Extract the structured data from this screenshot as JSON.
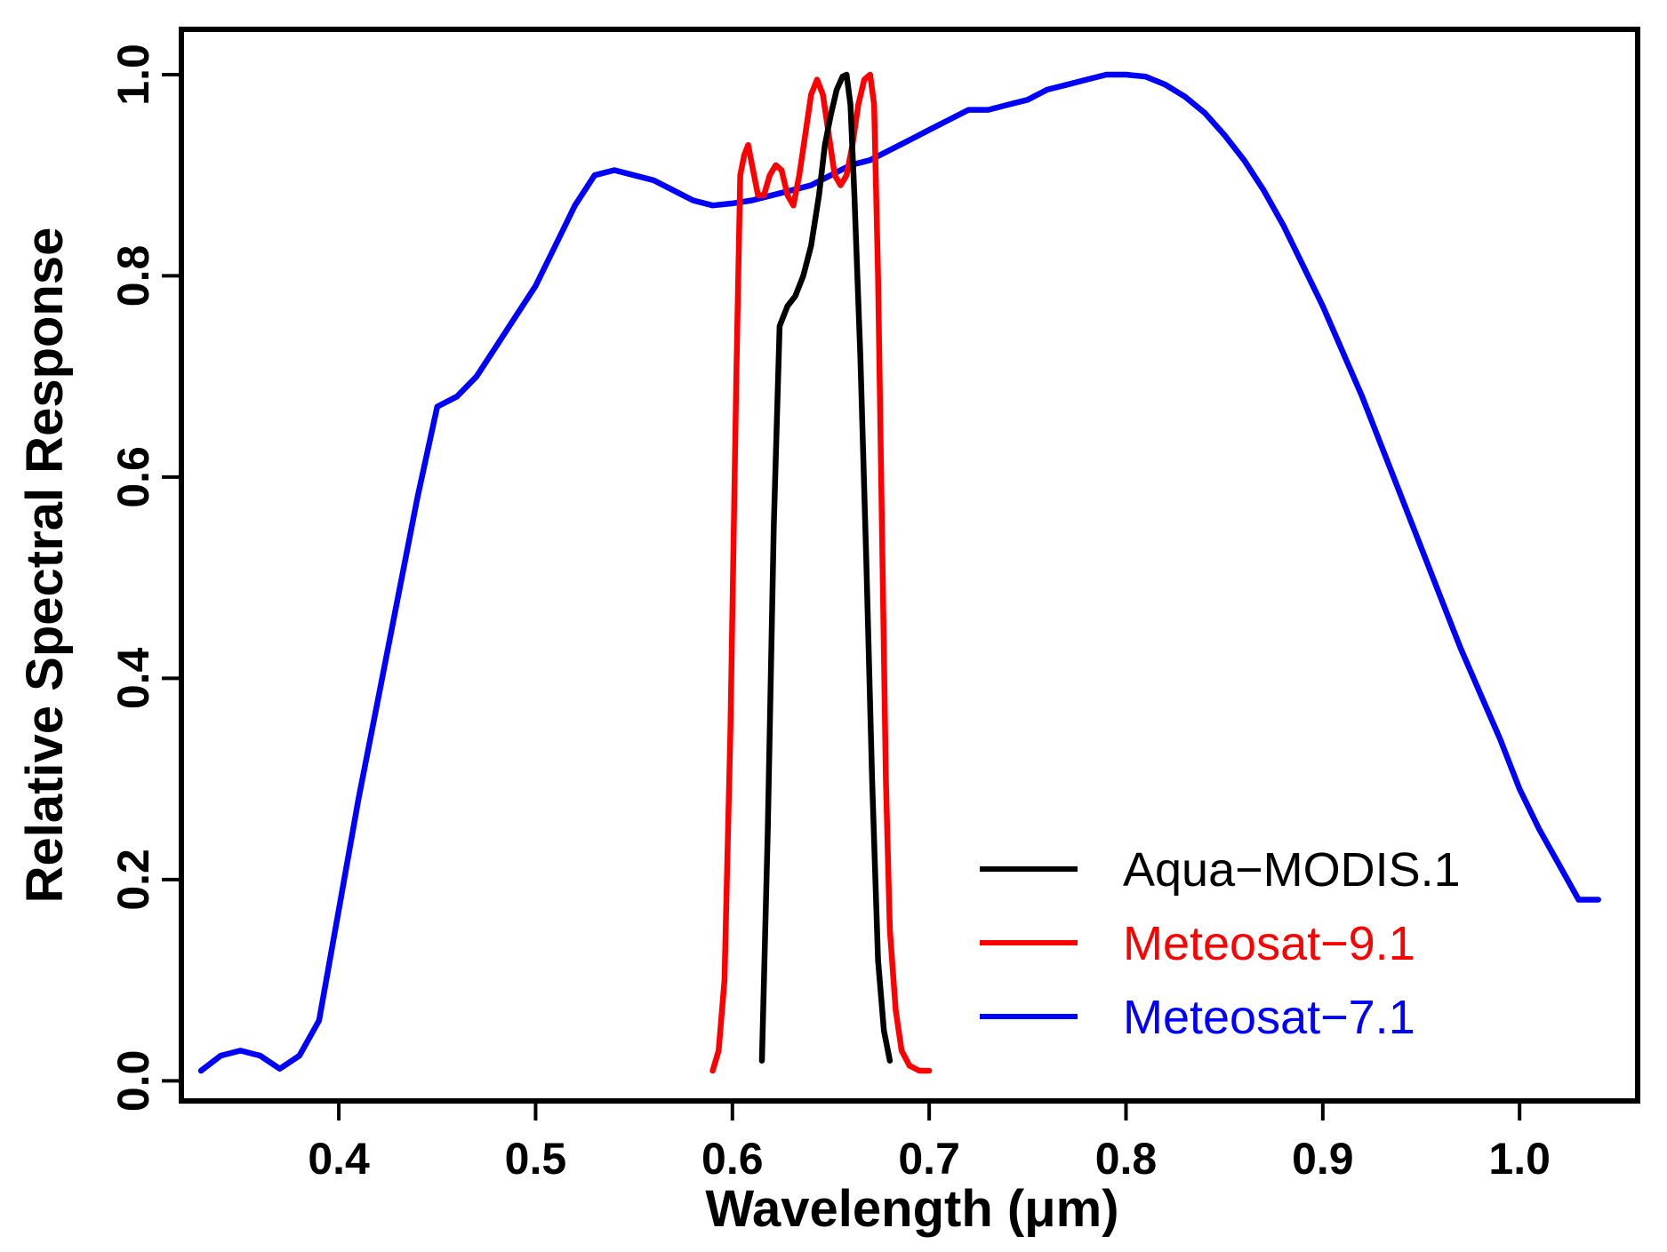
{
  "chart_data": {
    "type": "line",
    "title": "",
    "xlabel": "Wavelength (μm)",
    "ylabel": "Relative Spectral Response",
    "xlim": [
      0.32,
      1.06
    ],
    "ylim": [
      -0.02,
      1.045
    ],
    "xticks": [
      0.4,
      0.5,
      0.6,
      0.7,
      0.8,
      0.9,
      1.0
    ],
    "xtick_labels": [
      "0.4",
      "0.5",
      "0.6",
      "0.7",
      "0.8",
      "0.9",
      "1.0"
    ],
    "yticks": [
      0.0,
      0.2,
      0.4,
      0.6,
      0.8,
      1.0
    ],
    "ytick_labels": [
      "0.0",
      "0.2",
      "0.4",
      "0.6",
      "0.8",
      "1.0"
    ],
    "grid": false,
    "legend": "bottom-right",
    "series": [
      {
        "name": "Aqua−MODIS.1",
        "color": "#000000",
        "x": [
          0.615,
          0.618,
          0.621,
          0.624,
          0.626,
          0.628,
          0.632,
          0.636,
          0.64,
          0.644,
          0.647,
          0.65,
          0.653,
          0.656,
          0.658,
          0.66,
          0.662,
          0.665,
          0.668,
          0.671,
          0.674,
          0.677,
          0.68
        ],
        "y": [
          0.02,
          0.25,
          0.55,
          0.75,
          0.76,
          0.77,
          0.78,
          0.8,
          0.83,
          0.88,
          0.93,
          0.96,
          0.985,
          0.998,
          1.0,
          0.97,
          0.88,
          0.72,
          0.52,
          0.3,
          0.12,
          0.05,
          0.02
        ]
      },
      {
        "name": "Meteosat−9.1",
        "color": "#ff0000",
        "x": [
          0.59,
          0.593,
          0.596,
          0.599,
          0.602,
          0.604,
          0.606,
          0.608,
          0.61,
          0.613,
          0.616,
          0.619,
          0.622,
          0.625,
          0.628,
          0.631,
          0.634,
          0.637,
          0.64,
          0.643,
          0.646,
          0.649,
          0.652,
          0.655,
          0.658,
          0.661,
          0.664,
          0.667,
          0.67,
          0.672,
          0.674,
          0.676,
          0.678,
          0.68,
          0.683,
          0.686,
          0.69,
          0.695,
          0.7
        ],
        "y": [
          0.01,
          0.03,
          0.1,
          0.35,
          0.7,
          0.9,
          0.92,
          0.93,
          0.91,
          0.88,
          0.88,
          0.9,
          0.91,
          0.905,
          0.88,
          0.87,
          0.9,
          0.94,
          0.98,
          0.995,
          0.98,
          0.94,
          0.9,
          0.89,
          0.9,
          0.93,
          0.97,
          0.995,
          1.0,
          0.97,
          0.8,
          0.55,
          0.3,
          0.15,
          0.07,
          0.03,
          0.015,
          0.01,
          0.01
        ]
      },
      {
        "name": "Meteosat−7.1",
        "color": "#0000ff",
        "x": [
          0.33,
          0.34,
          0.35,
          0.36,
          0.37,
          0.38,
          0.39,
          0.4,
          0.41,
          0.42,
          0.43,
          0.44,
          0.45,
          0.46,
          0.47,
          0.48,
          0.49,
          0.5,
          0.51,
          0.52,
          0.53,
          0.54,
          0.55,
          0.56,
          0.57,
          0.58,
          0.59,
          0.6,
          0.61,
          0.62,
          0.63,
          0.64,
          0.65,
          0.66,
          0.67,
          0.68,
          0.69,
          0.7,
          0.71,
          0.72,
          0.73,
          0.74,
          0.75,
          0.76,
          0.77,
          0.78,
          0.79,
          0.8,
          0.81,
          0.82,
          0.83,
          0.84,
          0.85,
          0.86,
          0.87,
          0.88,
          0.89,
          0.9,
          0.91,
          0.92,
          0.93,
          0.94,
          0.95,
          0.96,
          0.97,
          0.98,
          0.99,
          1.0,
          1.01,
          1.02,
          1.03,
          1.04
        ],
        "y": [
          0.01,
          0.025,
          0.03,
          0.025,
          0.012,
          0.025,
          0.06,
          0.17,
          0.28,
          0.38,
          0.48,
          0.58,
          0.67,
          0.68,
          0.7,
          0.73,
          0.76,
          0.79,
          0.83,
          0.87,
          0.9,
          0.905,
          0.9,
          0.895,
          0.885,
          0.875,
          0.87,
          0.872,
          0.875,
          0.88,
          0.885,
          0.89,
          0.9,
          0.91,
          0.915,
          0.925,
          0.935,
          0.945,
          0.955,
          0.965,
          0.965,
          0.97,
          0.975,
          0.985,
          0.99,
          0.995,
          1.0,
          1.0,
          0.998,
          0.99,
          0.978,
          0.962,
          0.94,
          0.915,
          0.885,
          0.85,
          0.81,
          0.77,
          0.725,
          0.68,
          0.63,
          0.58,
          0.53,
          0.48,
          0.43,
          0.385,
          0.34,
          0.29,
          0.25,
          0.215,
          0.18,
          0.18
        ]
      }
    ]
  }
}
